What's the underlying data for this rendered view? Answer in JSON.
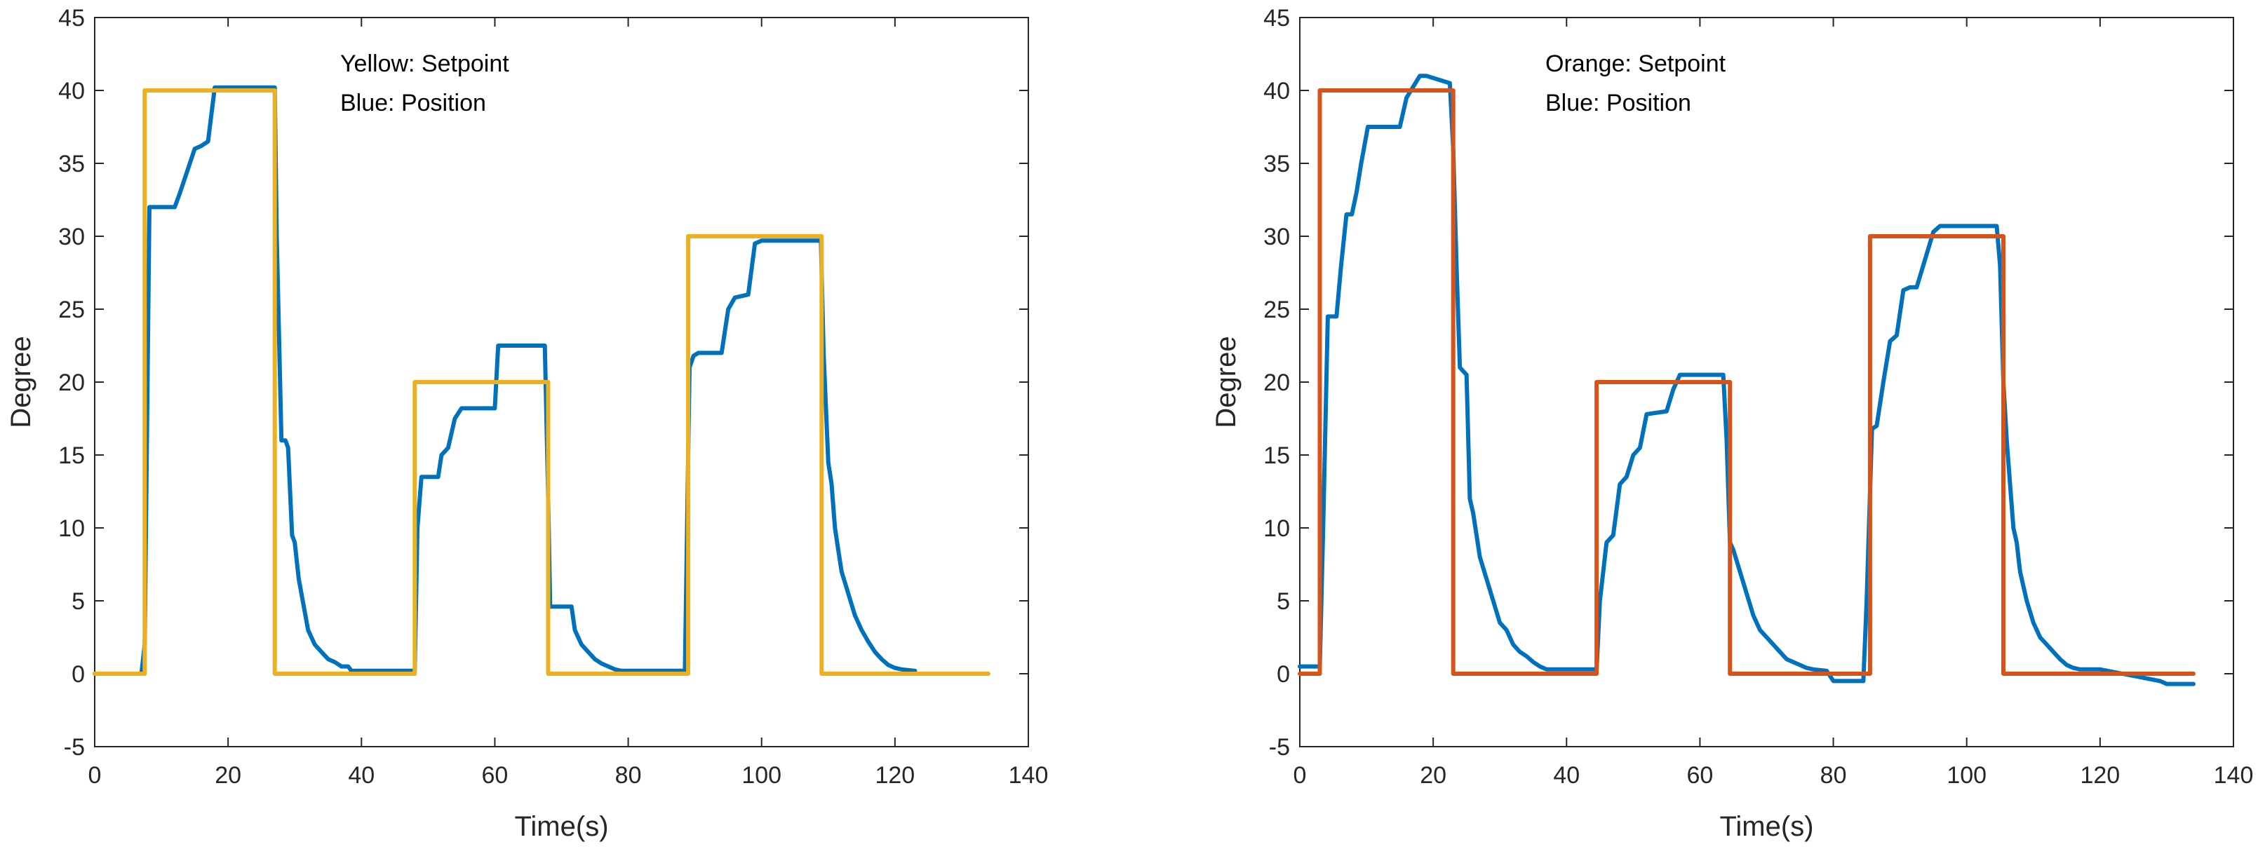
{
  "chart_data": [
    {
      "type": "line",
      "title": "",
      "xlabel": "Time(s)",
      "ylabel": "Degree",
      "xlim": [
        0,
        140
      ],
      "ylim": [
        -5,
        45
      ],
      "xticks": [
        0,
        20,
        40,
        60,
        80,
        100,
        120,
        140
      ],
      "yticks": [
        -5,
        0,
        5,
        10,
        15,
        20,
        25,
        30,
        35,
        40,
        45
      ],
      "xtick_labels": [
        "0",
        "20",
        "40",
        "60",
        "80",
        "100",
        "120",
        "140"
      ],
      "ytick_labels": [
        "-5",
        "0",
        "5",
        "10",
        "15",
        "20",
        "25",
        "30",
        "35",
        "40",
        "45"
      ],
      "grid": false,
      "annotations": [
        "Yellow: Setpoint",
        "Blue: Position"
      ],
      "series": [
        {
          "name": "Setpoint",
          "color": "#EDB120",
          "x": [
            0,
            7.5,
            7.5,
            27,
            27,
            48,
            48,
            68,
            68,
            89,
            89,
            109,
            109,
            134
          ],
          "y": [
            0,
            0,
            40,
            40,
            0,
            0,
            20,
            20,
            0,
            0,
            30,
            30,
            0,
            0
          ]
        },
        {
          "name": "Position",
          "color": "#0072BD",
          "x": [
            0,
            7,
            7.5,
            8.2,
            12,
            12.8,
            15,
            16,
            17,
            18,
            27,
            27.3,
            28,
            28.6,
            29,
            29.6,
            30,
            30.6,
            31,
            31.6,
            32,
            33,
            34,
            35,
            36,
            37,
            38,
            38.5,
            48,
            48.4,
            49,
            51.5,
            52,
            53,
            54,
            55,
            56.5,
            60,
            60.5,
            61.5,
            67.5,
            68,
            68.3,
            69,
            71.5,
            72,
            73,
            74,
            75,
            76,
            77,
            78,
            79,
            88.5,
            89.2,
            89.8,
            90.5,
            94,
            95,
            96,
            98,
            99,
            100,
            108.5,
            108.9,
            109.3,
            110,
            110.5,
            111,
            111.5,
            112,
            113,
            114,
            115,
            116,
            117,
            118,
            119,
            120,
            121,
            123
          ],
          "y": [
            0,
            0,
            2,
            32,
            32,
            33,
            36,
            36.2,
            36.5,
            40.2,
            40.2,
            30,
            16,
            16,
            15.5,
            9.5,
            9,
            6.5,
            5.5,
            4,
            3,
            2,
            1.5,
            1,
            0.8,
            0.5,
            0.5,
            0.2,
            0.2,
            10,
            13.5,
            13.5,
            15,
            15.5,
            17.5,
            18.2,
            18.2,
            18.2,
            22.5,
            22.5,
            22.5,
            12,
            4.6,
            4.6,
            4.6,
            3,
            2,
            1.5,
            1,
            0.7,
            0.5,
            0.3,
            0.2,
            0.2,
            21,
            21.8,
            22,
            22,
            25,
            25.8,
            26,
            29.5,
            29.7,
            29.7,
            29.7,
            22,
            14.5,
            13,
            10,
            8.5,
            7,
            5.5,
            4,
            3,
            2.2,
            1.5,
            1,
            0.6,
            0.4,
            0.3,
            0.2
          ]
        }
      ]
    },
    {
      "type": "line",
      "title": "",
      "xlabel": "Time(s)",
      "ylabel": "Degree",
      "xlim": [
        0,
        140
      ],
      "ylim": [
        -5,
        45
      ],
      "xticks": [
        0,
        20,
        40,
        60,
        80,
        100,
        120,
        140
      ],
      "yticks": [
        -5,
        0,
        5,
        10,
        15,
        20,
        25,
        30,
        35,
        40,
        45
      ],
      "xtick_labels": [
        "0",
        "20",
        "40",
        "60",
        "80",
        "100",
        "120",
        "140"
      ],
      "ytick_labels": [
        "-5",
        "0",
        "5",
        "10",
        "15",
        "20",
        "25",
        "30",
        "35",
        "40",
        "45"
      ],
      "grid": false,
      "annotations": [
        "Orange: Setpoint",
        "Blue: Position"
      ],
      "series": [
        {
          "name": "Setpoint",
          "color": "#D95319",
          "x": [
            0,
            3,
            3,
            23,
            23,
            44.5,
            44.5,
            64.5,
            64.5,
            85.5,
            85.5,
            105.5,
            105.5,
            134
          ],
          "y": [
            0,
            0,
            40,
            40,
            0,
            0,
            20,
            20,
            0,
            0,
            30,
            30,
            0,
            0
          ]
        },
        {
          "name": "Position",
          "color": "#0072BD",
          "x": [
            0,
            3,
            3.5,
            4.2,
            5.5,
            6.2,
            7,
            7.8,
            8.5,
            9.2,
            10.2,
            11,
            15,
            16,
            18,
            19,
            22.5,
            23,
            23.5,
            24,
            25,
            25.5,
            26,
            27,
            28,
            29,
            30,
            31,
            32,
            33,
            34,
            35,
            36,
            37,
            44.5,
            45,
            46,
            47,
            48,
            49,
            50,
            51,
            52,
            55,
            56,
            57,
            63.5,
            64,
            64.5,
            65,
            66,
            67,
            68,
            69,
            70,
            71,
            72,
            73,
            74,
            75,
            76,
            77,
            79,
            80,
            84.5,
            85,
            85.8,
            86.5,
            87.5,
            88.5,
            89.5,
            90.5,
            91.5,
            92.5,
            95,
            96,
            97,
            104.5,
            105,
            105.5,
            106,
            107,
            107.5,
            108,
            109,
            110,
            111,
            112,
            113,
            114,
            115,
            116,
            117,
            118,
            120,
            129,
            130,
            134
          ],
          "y": [
            0.5,
            0.5,
            10,
            24.5,
            24.5,
            28,
            31.5,
            31.5,
            33,
            35,
            37.5,
            37.5,
            37.5,
            39.5,
            41,
            41,
            40.5,
            36,
            28,
            21,
            20.5,
            12,
            11,
            8,
            6.5,
            5,
            3.5,
            3,
            2,
            1.5,
            1.2,
            0.8,
            0.5,
            0.3,
            0.3,
            5,
            9,
            9.5,
            13,
            13.5,
            15,
            15.5,
            17.8,
            18,
            19.5,
            20.5,
            20.5,
            16,
            9,
            8.5,
            7,
            5.5,
            4,
            3,
            2.5,
            2,
            1.5,
            1,
            0.8,
            0.6,
            0.4,
            0.3,
            0.2,
            -0.5,
            -0.5,
            5,
            16.8,
            17,
            20,
            22.8,
            23.2,
            26.3,
            26.5,
            26.5,
            30.3,
            30.7,
            30.7,
            30.7,
            28,
            20,
            16,
            10,
            9,
            7,
            5,
            3.5,
            2.5,
            2,
            1.5,
            1,
            0.6,
            0.4,
            0.3,
            0.3,
            0.3,
            -0.5,
            -0.7,
            -0.7
          ]
        }
      ]
    }
  ]
}
